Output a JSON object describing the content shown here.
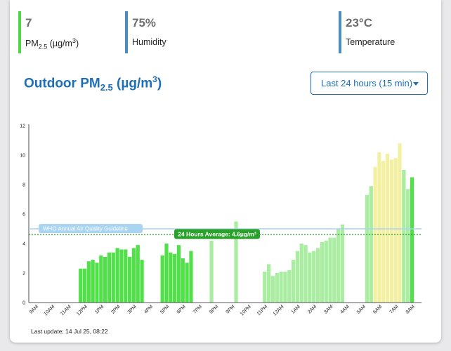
{
  "stats": [
    {
      "value": "7",
      "label_main": "PM",
      "label_sub": "2.5",
      "label_unit": " (µg/m",
      "label_sup": "3",
      "label_end": ")",
      "color": "#52d744"
    },
    {
      "value": "75%",
      "label": "Humidity",
      "color": "#4a8cc2"
    },
    {
      "value": "23°C",
      "label": "Temperature",
      "color": "#4a8cc2"
    }
  ],
  "title": {
    "main": "Outdoor PM",
    "sub": "2.5",
    "unit": " (µg/m",
    "sup": "3",
    "end": ")"
  },
  "range_button": {
    "label": "Last 24 hours (15 min)"
  },
  "colors": {
    "accent": "#1d6fb8",
    "green": "#52e04a",
    "light_green": "#a8eda0",
    "yellow": "#f4f0a2",
    "who_line": "#a9d4f2",
    "avg_line": "#2aa12a"
  },
  "last_update": "Last update: 14 Jul 25, 08:22",
  "chart_data": {
    "type": "bar",
    "ylim": [
      0,
      12
    ],
    "yticks": [
      "0",
      "2",
      "4",
      "6",
      "8",
      "10",
      "12"
    ],
    "xticks": [
      "9AM",
      "10AM",
      "11AM",
      "12PM",
      "1PM",
      "2PM",
      "3PM",
      "4PM",
      "5PM",
      "6PM",
      "7PM",
      "8PM",
      "9PM",
      "10PM",
      "11PM",
      "12AM",
      "1AM",
      "2AM",
      "3AM",
      "4AM",
      "5AM",
      "6AM",
      "7AM",
      "8AM"
    ],
    "who_guideline": {
      "value": 5,
      "label": "WHO Annual Air Quality Guideline"
    },
    "average": {
      "value": 4.6,
      "label": "24 Hours Average: 4.6µg/m³"
    },
    "grid": false,
    "bars": [
      {
        "t": 3.05,
        "v": 2.3,
        "c": "green"
      },
      {
        "t": 3.3,
        "v": 2.3,
        "c": "green"
      },
      {
        "t": 3.55,
        "v": 2.8,
        "c": "green"
      },
      {
        "t": 3.8,
        "v": 2.9,
        "c": "green"
      },
      {
        "t": 4.05,
        "v": 2.7,
        "c": "green"
      },
      {
        "t": 4.3,
        "v": 3.2,
        "c": "green"
      },
      {
        "t": 4.55,
        "v": 3.1,
        "c": "green"
      },
      {
        "t": 4.8,
        "v": 3.4,
        "c": "green"
      },
      {
        "t": 5.05,
        "v": 3.4,
        "c": "green"
      },
      {
        "t": 5.3,
        "v": 3.7,
        "c": "green"
      },
      {
        "t": 5.55,
        "v": 3.6,
        "c": "green"
      },
      {
        "t": 5.8,
        "v": 3.6,
        "c": "green"
      },
      {
        "t": 6.05,
        "v": 3.1,
        "c": "green"
      },
      {
        "t": 6.3,
        "v": 3.7,
        "c": "green"
      },
      {
        "t": 6.55,
        "v": 3.9,
        "c": "green"
      },
      {
        "t": 6.8,
        "v": 2.9,
        "c": "green"
      },
      {
        "t": 8.05,
        "v": 3.2,
        "c": "green"
      },
      {
        "t": 8.3,
        "v": 4.0,
        "c": "green"
      },
      {
        "t": 8.55,
        "v": 3.4,
        "c": "green"
      },
      {
        "t": 8.8,
        "v": 3.3,
        "c": "green"
      },
      {
        "t": 9.05,
        "v": 3.9,
        "c": "green"
      },
      {
        "t": 9.3,
        "v": 3.0,
        "c": "green"
      },
      {
        "t": 9.55,
        "v": 2.7,
        "c": "green"
      },
      {
        "t": 9.8,
        "v": 3.5,
        "c": "green"
      },
      {
        "t": 11.05,
        "v": 4.2,
        "c": "light_green"
      },
      {
        "t": 12.55,
        "v": 5.5,
        "c": "light_green"
      },
      {
        "t": 14.3,
        "v": 2.1,
        "c": "light_green"
      },
      {
        "t": 14.55,
        "v": 2.6,
        "c": "light_green"
      },
      {
        "t": 14.8,
        "v": 1.8,
        "c": "light_green"
      },
      {
        "t": 15.05,
        "v": 2.0,
        "c": "light_green"
      },
      {
        "t": 15.3,
        "v": 2.1,
        "c": "light_green"
      },
      {
        "t": 15.55,
        "v": 2.1,
        "c": "light_green"
      },
      {
        "t": 15.8,
        "v": 2.2,
        "c": "light_green"
      },
      {
        "t": 16.05,
        "v": 2.9,
        "c": "light_green"
      },
      {
        "t": 16.3,
        "v": 3.5,
        "c": "light_green"
      },
      {
        "t": 16.55,
        "v": 4.0,
        "c": "light_green"
      },
      {
        "t": 16.8,
        "v": 3.9,
        "c": "light_green"
      },
      {
        "t": 17.05,
        "v": 3.4,
        "c": "light_green"
      },
      {
        "t": 17.3,
        "v": 3.5,
        "c": "light_green"
      },
      {
        "t": 17.55,
        "v": 3.7,
        "c": "light_green"
      },
      {
        "t": 17.8,
        "v": 4.1,
        "c": "light_green"
      },
      {
        "t": 18.05,
        "v": 4.2,
        "c": "light_green"
      },
      {
        "t": 18.3,
        "v": 4.4,
        "c": "light_green"
      },
      {
        "t": 18.55,
        "v": 4.4,
        "c": "light_green"
      },
      {
        "t": 18.8,
        "v": 5.0,
        "c": "light_green"
      },
      {
        "t": 19.05,
        "v": 5.3,
        "c": "light_green"
      },
      {
        "t": 20.55,
        "v": 7.3,
        "c": "light_green"
      },
      {
        "t": 20.8,
        "v": 7.9,
        "c": "light_green"
      },
      {
        "t": 21.05,
        "v": 9.2,
        "c": "yellow"
      },
      {
        "t": 21.3,
        "v": 10.2,
        "c": "yellow"
      },
      {
        "t": 21.55,
        "v": 9.6,
        "c": "yellow"
      },
      {
        "t": 21.8,
        "v": 10.1,
        "c": "yellow"
      },
      {
        "t": 22.05,
        "v": 9.7,
        "c": "yellow"
      },
      {
        "t": 22.3,
        "v": 9.8,
        "c": "yellow"
      },
      {
        "t": 22.55,
        "v": 10.8,
        "c": "yellow"
      },
      {
        "t": 22.8,
        "v": 9.0,
        "c": "light_green"
      },
      {
        "t": 23.05,
        "v": 7.7,
        "c": "light_green"
      },
      {
        "t": 23.3,
        "v": 8.5,
        "c": "green"
      }
    ]
  }
}
